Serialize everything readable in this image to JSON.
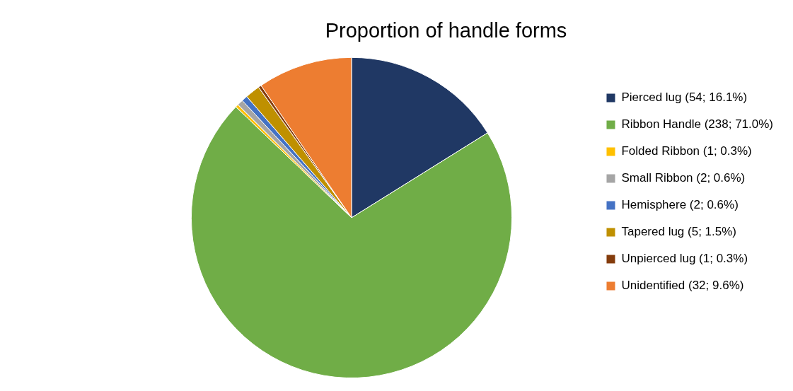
{
  "chart_data": {
    "type": "pie",
    "title": "Proportion of handle forms",
    "categories": [
      "Pierced lug (54; 16.1%)",
      "Ribbon Handle (238; 71.0%)",
      "Folded Ribbon (1; 0.3%)",
      "Small Ribbon (2; 0.6%)",
      "Hemisphere (2; 0.6%)",
      "Tapered lug (5; 1.5%)",
      "Unpierced lug (1; 0.3%)",
      "Unidentified (32; 9.6%)"
    ],
    "values": [
      54,
      238,
      1,
      2,
      2,
      5,
      1,
      32
    ],
    "colors": [
      "#203864",
      "#70ad47",
      "#ffc000",
      "#a5a5a5",
      "#4472c4",
      "#bf9000",
      "#843c0c",
      "#ed7d31"
    ],
    "legend": "right"
  }
}
